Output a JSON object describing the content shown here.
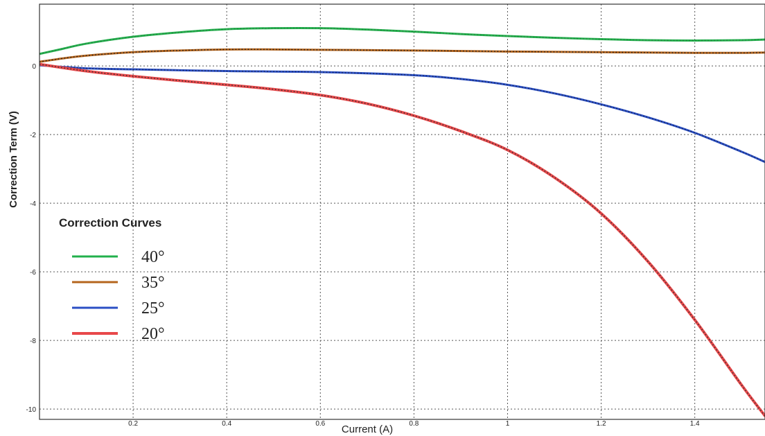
{
  "chart_data": {
    "type": "line",
    "title": "",
    "xlabel": "Current (A)",
    "ylabel": "Correction Term (V)",
    "xlim": [
      0,
      1.55
    ],
    "ylim": [
      -10.3,
      1.8
    ],
    "x_ticks": [
      0.2,
      0.4,
      0.6,
      0.8,
      1,
      1.2,
      1.4
    ],
    "y_ticks": [
      0,
      -2,
      -4,
      -6,
      -8,
      -10
    ],
    "grid": true,
    "legend": {
      "title": "Correction Curves",
      "position": "left"
    },
    "series": [
      {
        "name": "40°",
        "color": "#22b14c",
        "fit_color": "#2e7d46",
        "points": [
          [
            0,
            0.35
          ],
          [
            0.05,
            0.5
          ],
          [
            0.1,
            0.65
          ],
          [
            0.2,
            0.85
          ],
          [
            0.3,
            0.98
          ],
          [
            0.4,
            1.07
          ],
          [
            0.5,
            1.1
          ],
          [
            0.6,
            1.1
          ],
          [
            0.7,
            1.06
          ],
          [
            0.8,
            1.0
          ],
          [
            0.9,
            0.93
          ],
          [
            1.0,
            0.87
          ],
          [
            1.1,
            0.82
          ],
          [
            1.2,
            0.78
          ],
          [
            1.3,
            0.75
          ],
          [
            1.4,
            0.74
          ],
          [
            1.5,
            0.75
          ],
          [
            1.55,
            0.77
          ]
        ]
      },
      {
        "name": "35°",
        "color": "#b5651d",
        "fit_color": "#222222",
        "points": [
          [
            0,
            0.12
          ],
          [
            0.05,
            0.22
          ],
          [
            0.1,
            0.3
          ],
          [
            0.2,
            0.4
          ],
          [
            0.3,
            0.45
          ],
          [
            0.4,
            0.48
          ],
          [
            0.5,
            0.48
          ],
          [
            0.6,
            0.47
          ],
          [
            0.8,
            0.45
          ],
          [
            1.0,
            0.42
          ],
          [
            1.2,
            0.4
          ],
          [
            1.4,
            0.38
          ],
          [
            1.5,
            0.38
          ],
          [
            1.55,
            0.39
          ]
        ]
      },
      {
        "name": "25°",
        "color": "#2b4fc4",
        "fit_color": "#1a2a5a",
        "points": [
          [
            0,
            0.02
          ],
          [
            0.1,
            -0.07
          ],
          [
            0.2,
            -0.1
          ],
          [
            0.4,
            -0.15
          ],
          [
            0.6,
            -0.18
          ],
          [
            0.8,
            -0.27
          ],
          [
            0.9,
            -0.38
          ],
          [
            1.0,
            -0.55
          ],
          [
            1.1,
            -0.8
          ],
          [
            1.2,
            -1.12
          ],
          [
            1.3,
            -1.5
          ],
          [
            1.4,
            -1.95
          ],
          [
            1.5,
            -2.5
          ],
          [
            1.55,
            -2.8
          ]
        ]
      },
      {
        "name": "20°",
        "color": "#e8484a",
        "fit_color": "#333333",
        "points": [
          [
            0,
            0.05
          ],
          [
            0.1,
            -0.15
          ],
          [
            0.2,
            -0.3
          ],
          [
            0.3,
            -0.43
          ],
          [
            0.4,
            -0.55
          ],
          [
            0.5,
            -0.68
          ],
          [
            0.6,
            -0.85
          ],
          [
            0.7,
            -1.1
          ],
          [
            0.8,
            -1.45
          ],
          [
            0.9,
            -1.9
          ],
          [
            1.0,
            -2.45
          ],
          [
            1.1,
            -3.25
          ],
          [
            1.2,
            -4.3
          ],
          [
            1.3,
            -5.7
          ],
          [
            1.4,
            -7.4
          ],
          [
            1.5,
            -9.3
          ],
          [
            1.55,
            -10.2
          ]
        ]
      }
    ]
  }
}
